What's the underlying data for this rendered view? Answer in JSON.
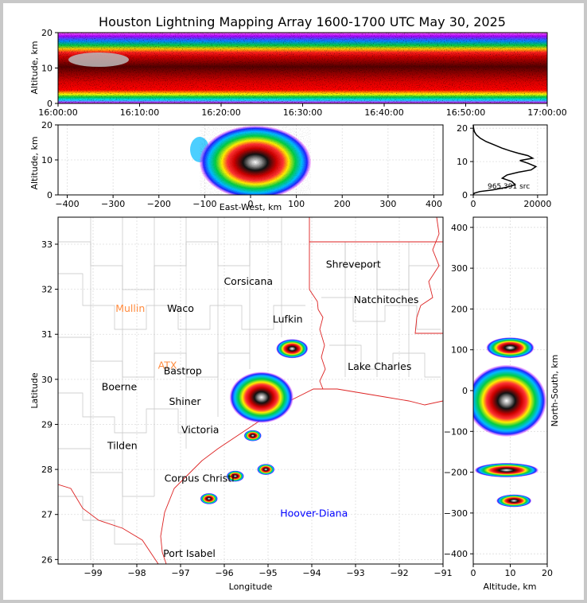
{
  "chart_data": [
    {
      "id": "time_altitude",
      "type": "heatmap",
      "title": "Houston Lightning Mapping Array 1600-1700 UTC May 30, 2025",
      "xlabel": "",
      "ylabel": "Altitude, km",
      "x_ticks": [
        "16:00:00",
        "16:10:00",
        "16:20:00",
        "16:30:00",
        "16:40:00",
        "16:50:00",
        "17:00:00"
      ],
      "y_ticks": [
        0,
        10,
        20
      ],
      "ylim": [
        0,
        20
      ],
      "density_bands_km": [
        {
          "altitude": [
            0,
            2
          ],
          "level": "low"
        },
        {
          "altitude": [
            2,
            5
          ],
          "level": "medium"
        },
        {
          "altitude": [
            5,
            15
          ],
          "level": "high"
        },
        {
          "altitude": [
            15,
            20
          ],
          "level": "medium"
        }
      ]
    },
    {
      "id": "eastwest_altitude",
      "type": "heatmap",
      "xlabel": "East-West, km",
      "ylabel": "Altitude, km",
      "x_ticks": [
        -400,
        -300,
        -200,
        -100,
        0,
        100,
        200,
        300,
        400
      ],
      "y_ticks": [
        0,
        10,
        20
      ],
      "xlim": [
        -420,
        420
      ],
      "ylim": [
        0,
        20
      ],
      "core_center_km": {
        "x": 10,
        "altitude": 10
      }
    },
    {
      "id": "altitude_histogram",
      "type": "line",
      "x_ticks": [
        0,
        20000
      ],
      "y_ticks": [
        0,
        10,
        20
      ],
      "xlim": [
        0,
        23000
      ],
      "ylim": [
        0,
        21
      ],
      "annotation": "965,391 src",
      "x": [
        0,
        300,
        2000,
        6000,
        10000,
        13000,
        12000,
        9000,
        10500,
        14000,
        18000,
        19500,
        17000,
        14500,
        18500,
        17000,
        14000,
        11500,
        9000,
        6500,
        4000,
        2200,
        1000,
        350,
        100,
        0
      ],
      "y": [
        0,
        0.5,
        1.0,
        1.5,
        2.2,
        3.0,
        4.0,
        5.0,
        6.0,
        6.8,
        7.5,
        8.5,
        9.5,
        10.3,
        11.0,
        11.8,
        12.5,
        13.2,
        14.0,
        15.0,
        16.0,
        17.0,
        18.0,
        19.0,
        20.0,
        21.0
      ]
    },
    {
      "id": "plan_view_map",
      "type": "scatter",
      "xlabel": "Longitude",
      "ylabel": "Latitude",
      "x_ticks": [
        -99,
        -98,
        -97,
        -96,
        -95,
        -94,
        -93,
        -92,
        -91
      ],
      "y_ticks": [
        26,
        27,
        28,
        29,
        30,
        31,
        32,
        33
      ],
      "xlim": [
        -99.8,
        -91
      ],
      "ylim": [
        25.9,
        33.6
      ],
      "places": [
        {
          "name": "Shreveport",
          "lon": -93.05,
          "lat": 32.55,
          "color": "#000000"
        },
        {
          "name": "Corsicana",
          "lon": -95.45,
          "lat": 32.17,
          "color": "#000000"
        },
        {
          "name": "Natchitoches",
          "lon": -92.3,
          "lat": 31.76,
          "color": "#000000"
        },
        {
          "name": "Mullin",
          "lon": -98.15,
          "lat": 31.57,
          "color": "#ff8c40"
        },
        {
          "name": "Waco",
          "lon": -97.0,
          "lat": 31.57,
          "color": "#000000"
        },
        {
          "name": "Lufkin",
          "lon": -94.55,
          "lat": 31.33,
          "color": "#000000"
        },
        {
          "name": "ATX",
          "lon": -97.3,
          "lat": 30.31,
          "color": "#ff8c40"
        },
        {
          "name": "Bastrop",
          "lon": -96.95,
          "lat": 30.18,
          "color": "#000000"
        },
        {
          "name": "Lake Charles",
          "lon": -92.45,
          "lat": 30.28,
          "color": "#000000"
        },
        {
          "name": "Boerne",
          "lon": -98.4,
          "lat": 29.83,
          "color": "#000000"
        },
        {
          "name": "Shiner",
          "lon": -96.9,
          "lat": 29.5,
          "color": "#000000"
        },
        {
          "name": "Victoria",
          "lon": -96.55,
          "lat": 28.88,
          "color": "#000000"
        },
        {
          "name": "Tilden",
          "lon": -98.33,
          "lat": 28.52,
          "color": "#000000"
        },
        {
          "name": "Corpus Christi",
          "lon": -96.57,
          "lat": 27.8,
          "color": "#000000"
        },
        {
          "name": "Hoover-Diana",
          "lon": -93.95,
          "lat": 27.02,
          "color": "#0000ff"
        },
        {
          "name": "Port Isabel",
          "lon": -96.8,
          "lat": 26.13,
          "color": "#000000"
        }
      ],
      "clusters": [
        {
          "lon": -95.15,
          "lat": 29.6,
          "size": "large"
        },
        {
          "lon": -94.45,
          "lat": 30.68,
          "size": "medium"
        },
        {
          "lon": -95.35,
          "lat": 28.75,
          "size": "small"
        },
        {
          "lon": -95.05,
          "lat": 28.0,
          "size": "small"
        },
        {
          "lon": -95.75,
          "lat": 27.85,
          "size": "small"
        },
        {
          "lon": -96.35,
          "lat": 27.35,
          "size": "small"
        }
      ]
    },
    {
      "id": "altitude_northsouth",
      "type": "heatmap",
      "xlabel": "Altitude, km",
      "ylabel": "North-South, km",
      "x_ticks": [
        0,
        10,
        20
      ],
      "y_ticks": [
        -400,
        -300,
        -200,
        -100,
        0,
        100,
        200,
        300,
        400
      ],
      "xlim": [
        0,
        20
      ],
      "ylim": [
        -425,
        425
      ],
      "bands": [
        {
          "y_center": 105,
          "x_center": 10
        },
        {
          "y_center": -25,
          "x_center": 9
        },
        {
          "y_center": -195,
          "x_center": 9
        },
        {
          "y_center": -270,
          "x_center": 11
        }
      ]
    }
  ]
}
